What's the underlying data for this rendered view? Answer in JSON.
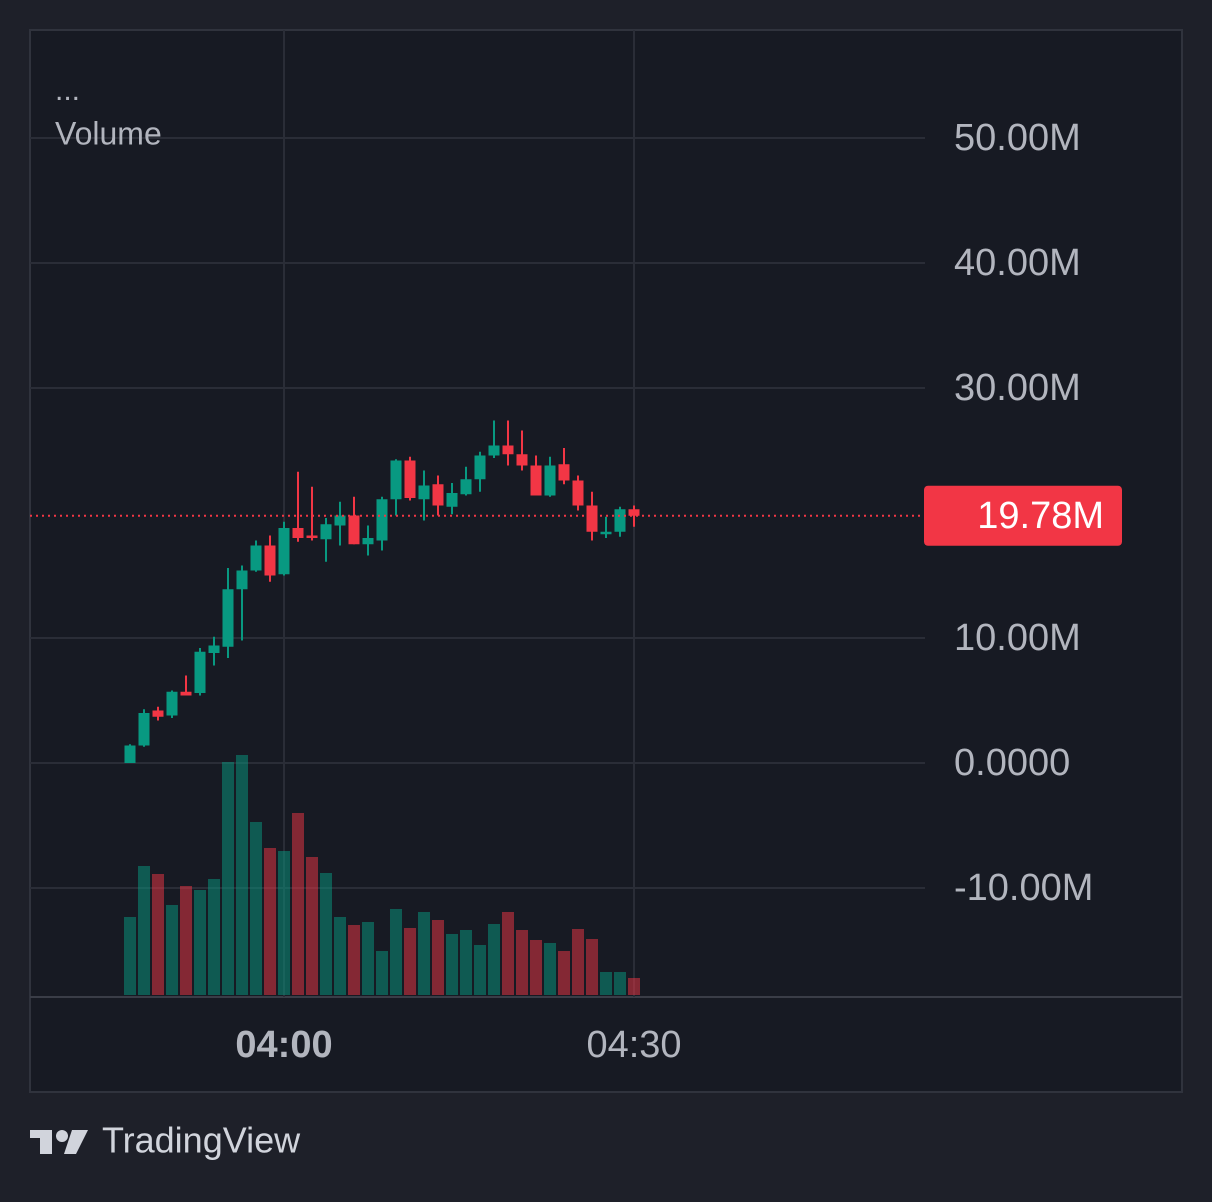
{
  "brand": "TradingView",
  "chart_data": {
    "type": "candlestick",
    "legend": "...",
    "volume_name": "Volume",
    "categories": [
      null,
      null,
      null,
      null,
      null,
      null,
      null,
      null,
      null,
      null,
      null,
      "04:00",
      null,
      null,
      null,
      null,
      null,
      null,
      null,
      null,
      null,
      null,
      null,
      null,
      null,
      null,
      null,
      null,
      null,
      null,
      null,
      null,
      null,
      null,
      null,
      null,
      "04:30"
    ],
    "open": [
      0,
      1.4,
      4.2,
      3.8,
      5.7,
      5.6,
      8.8,
      9.3,
      13.9,
      15.4,
      17.4,
      15.1,
      18.8,
      18.2,
      17.9,
      19.0,
      19.8,
      17.5,
      17.8,
      21.1,
      24.2,
      21.1,
      22.3,
      20.5,
      21.5,
      22.7,
      24.6,
      25.4,
      24.7,
      23.8,
      21.4,
      23.9,
      22.6,
      20.6,
      18.3,
      18.5,
      20.3
    ],
    "high": [
      1.5,
      4.3,
      4.5,
      5.8,
      7.0,
      9.2,
      10.1,
      15.6,
      15.8,
      17.8,
      18.2,
      19.3,
      23.3,
      22.1,
      19.6,
      20.9,
      21.3,
      19.0,
      21.3,
      24.3,
      24.5,
      23.4,
      23.0,
      22.4,
      23.7,
      24.9,
      27.4,
      27.4,
      26.6,
      24.6,
      24.5,
      25.2,
      23.0,
      21.7,
      19.7,
      20.5,
      20.6
    ],
    "low": [
      0,
      1.3,
      3.4,
      3.6,
      5.4,
      5.4,
      7.8,
      8.4,
      9.8,
      15.3,
      14.5,
      15.0,
      17.7,
      17.8,
      16.1,
      17.4,
      17.5,
      16.6,
      17.0,
      19.8,
      21.0,
      19.4,
      19.8,
      19.9,
      21.4,
      21.7,
      24.4,
      23.8,
      23.4,
      21.4,
      21.3,
      22.3,
      20.2,
      17.8,
      18.0,
      18.1,
      18.9
    ],
    "close": [
      1.4,
      4.0,
      3.7,
      5.7,
      5.4,
      8.9,
      9.4,
      13.9,
      15.4,
      17.4,
      15.0,
      18.8,
      18.0,
      18.0,
      19.1,
      19.8,
      17.5,
      18.0,
      21.1,
      24.2,
      21.2,
      22.2,
      20.6,
      21.6,
      22.7,
      24.6,
      25.4,
      24.7,
      23.8,
      21.4,
      23.8,
      22.6,
      20.6,
      18.5,
      18.5,
      20.3,
      19.78
    ],
    "volume": [
      78,
      129,
      121,
      90,
      109,
      105,
      116,
      233,
      240,
      173,
      147,
      144,
      182,
      138,
      122,
      78,
      70,
      73,
      44,
      86,
      67,
      83,
      75,
      61,
      65,
      50,
      71,
      83,
      65,
      55,
      52,
      44,
      66,
      56,
      23,
      23,
      17
    ],
    "up_color": "#089981",
    "down_color": "#f23645",
    "ylim": [
      -18.72,
      58.64
    ],
    "yticks": [
      {
        "value": 50,
        "label": "50.00M"
      },
      {
        "value": 40,
        "label": "40.00M"
      },
      {
        "value": 30,
        "label": "30.00M"
      },
      {
        "value": 10,
        "label": "10.00M"
      },
      {
        "value": 0,
        "label": "0.0000"
      },
      {
        "value": -10,
        "label": "-10.00M"
      }
    ],
    "last_price": {
      "value": 19.78,
      "label": "19.78M"
    },
    "grid": true
  }
}
